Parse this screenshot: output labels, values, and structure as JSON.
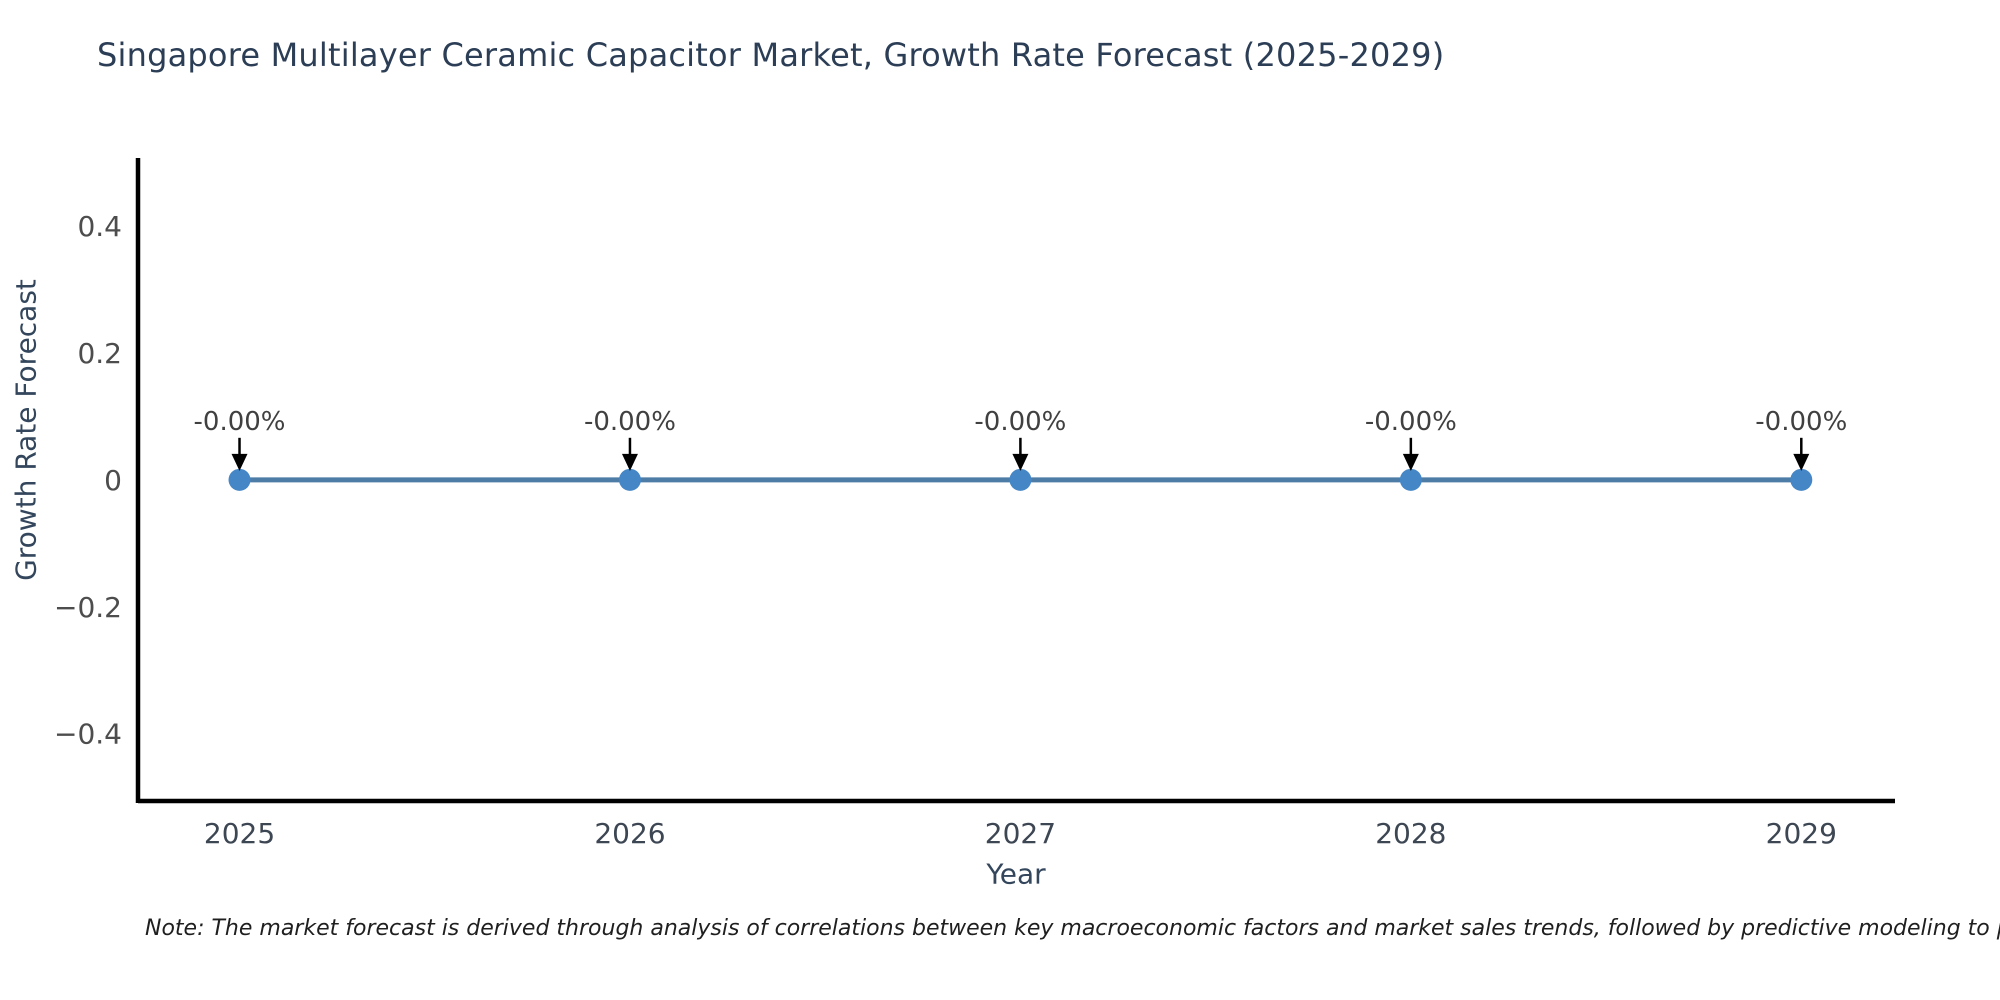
{
  "header": {
    "title": "Singapore Multilayer Ceramic Capacitor Market, Growth Rate Forecast (2025-2029)"
  },
  "footnote": {
    "text": "Note: The market forecast is derived through analysis of correlations between key macroeconomic factors and market sales trends, followed by predictive modeling to project future sa"
  },
  "chart_data": {
    "type": "line",
    "title": "Singapore Multilayer Ceramic Capacitor Market, Growth Rate Forecast (2025-2029)",
    "xlabel": "Year",
    "ylabel": "Growth Rate Forecast",
    "x": [
      2025,
      2026,
      2027,
      2028,
      2029
    ],
    "xtick_labels": [
      "2025",
      "2026",
      "2027",
      "2028",
      "2029"
    ],
    "series": [
      {
        "name": "Growth Rate Forecast",
        "values": [
          0,
          0,
          0,
          0,
          0
        ]
      }
    ],
    "point_labels": [
      "-0.00%",
      "-0.00%",
      "-0.00%",
      "-0.00%",
      "-0.00%"
    ],
    "yticks": [
      {
        "v": 0.4,
        "label": "0.4"
      },
      {
        "v": 0.2,
        "label": "0.2"
      },
      {
        "v": 0,
        "label": "0"
      },
      {
        "v": -0.2,
        "label": "−0.2"
      },
      {
        "v": -0.4,
        "label": "−0.4"
      }
    ],
    "xlim": [
      2024.74,
      2029.24
    ],
    "ylim": [
      -0.506,
      0.507
    ],
    "grid": false,
    "legend": "none",
    "annotation_arrow": "down",
    "colors": {
      "line": "#4d7ca6",
      "marker": "#4486c6",
      "axis": "#000000",
      "arrow": "#000000",
      "annotation_text": "#404040",
      "xtick": "#3d4653",
      "ytick": "#4d4d4d",
      "title": "#2c3e56",
      "axis_label": "#33465c",
      "note": "#1f1f1f"
    }
  }
}
